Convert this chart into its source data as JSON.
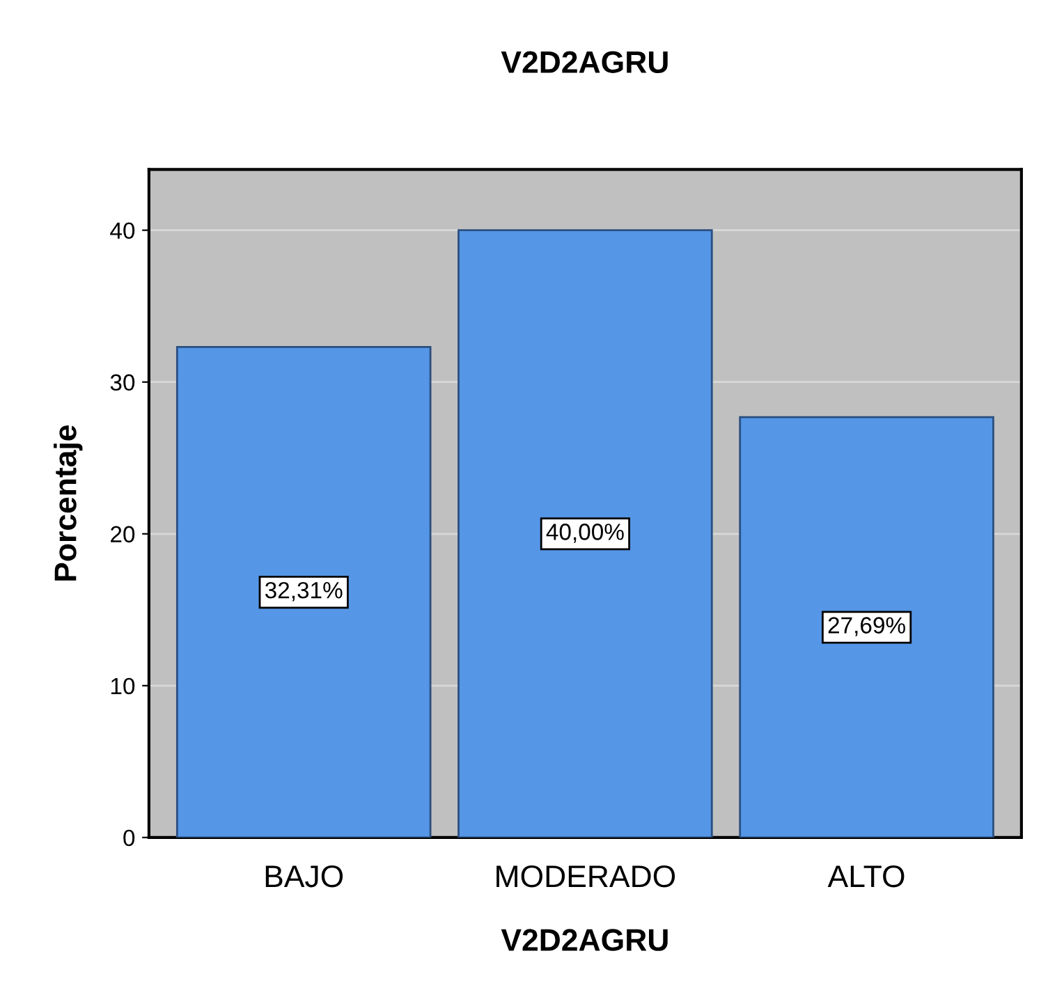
{
  "chart_data": {
    "type": "bar",
    "title": "V2D2AGRU",
    "xlabel": "V2D2AGRU",
    "ylabel": "Porcentaje",
    "categories": [
      "BAJO",
      "MODERADO",
      "ALTO"
    ],
    "values": [
      32.31,
      40.0,
      27.69
    ],
    "value_labels": [
      "32,31%",
      "40,00%",
      "27,69%"
    ],
    "color": "#5596e6",
    "ylim": [
      0,
      44
    ],
    "yticks": [
      0,
      10,
      20,
      30,
      40
    ],
    "grid": "y"
  }
}
